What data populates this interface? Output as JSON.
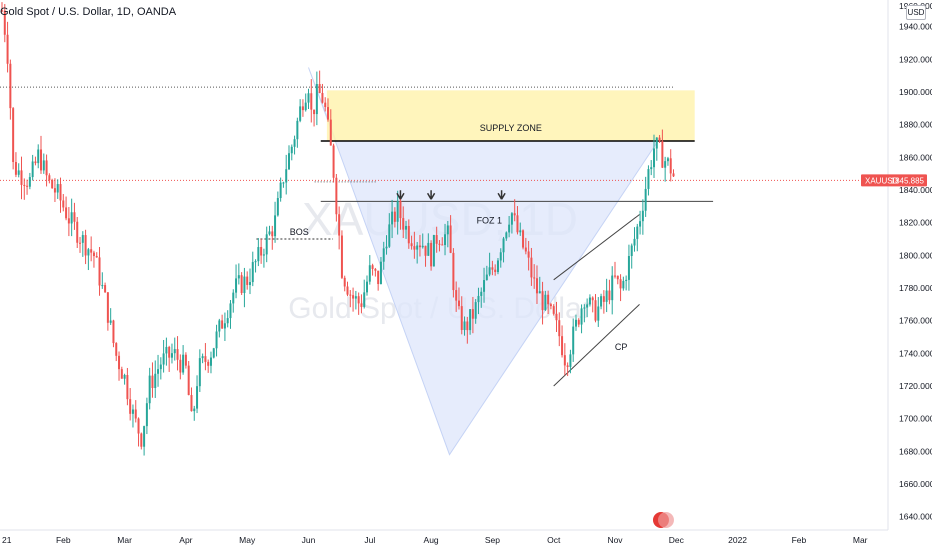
{
  "header": {
    "title": "Gold Spot / U.S. Dollar, 1D, OANDA",
    "currency": "USD",
    "top_price_partial": "1960.000"
  },
  "watermark": {
    "symbol": "XAUUSD, 1D",
    "name": "Gold Spot / U.S. Dollar"
  },
  "annotations": {
    "supply_zone": "SUPPLY ZONE",
    "foz": "FOZ 1",
    "bos": "BOS",
    "cp": "CP"
  },
  "price_tag": {
    "symbol": "XAUUSD",
    "price": "1845.885",
    "value": 1845.885
  },
  "colors": {
    "up": "#26a69a",
    "down": "#ef5350",
    "zone": "#fff3b0",
    "pattern": "#dde6fb",
    "price_line": "#ef5350"
  },
  "chart_data": {
    "type": "candlestick",
    "title": "Gold Spot / U.S. Dollar, 1D, OANDA",
    "ylim": [
      1630,
      1960
    ],
    "y_ticks": [
      1640,
      1660,
      1680,
      1700,
      1720,
      1740,
      1760,
      1780,
      1800,
      1820,
      1840,
      1860,
      1880,
      1900,
      1920,
      1940
    ],
    "y_tick_labels": [
      "1640.000",
      "1660.000",
      "1680.000",
      "1700.000",
      "1720.000",
      "1740.000",
      "1760.000",
      "1780.000",
      "1800.000",
      "1820.000",
      "1840.000",
      "1860.000",
      "1880.000",
      "1900.000",
      "1920.000",
      "1940.000"
    ],
    "x_labels": [
      {
        "label": "21",
        "month": 0
      },
      {
        "label": "Feb",
        "month": 1
      },
      {
        "label": "Mar",
        "month": 2
      },
      {
        "label": "Apr",
        "month": 3
      },
      {
        "label": "May",
        "month": 4
      },
      {
        "label": "Jun",
        "month": 5
      },
      {
        "label": "Jul",
        "month": 6
      },
      {
        "label": "Aug",
        "month": 7
      },
      {
        "label": "Sep",
        "month": 8
      },
      {
        "label": "Oct",
        "month": 9
      },
      {
        "label": "Nov",
        "month": 10
      },
      {
        "label": "Dec",
        "month": 11
      },
      {
        "label": "2022",
        "month": 12
      },
      {
        "label": "Feb",
        "month": 13
      },
      {
        "label": "Mar",
        "month": 14
      }
    ],
    "path": [
      [
        0.0,
        1950
      ],
      [
        0.08,
        1930
      ],
      [
        0.12,
        1905
      ],
      [
        0.18,
        1855
      ],
      [
        0.3,
        1850
      ],
      [
        0.45,
        1845
      ],
      [
        0.6,
        1862
      ],
      [
        0.75,
        1845
      ],
      [
        0.9,
        1838
      ],
      [
        1.1,
        1822
      ],
      [
        1.3,
        1810
      ],
      [
        1.5,
        1800
      ],
      [
        1.7,
        1770
      ],
      [
        1.85,
        1740
      ],
      [
        2.0,
        1725
      ],
      [
        2.15,
        1700
      ],
      [
        2.28,
        1688
      ],
      [
        2.4,
        1720
      ],
      [
        2.6,
        1735
      ],
      [
        2.8,
        1740
      ],
      [
        3.0,
        1730
      ],
      [
        3.1,
        1695
      ],
      [
        3.2,
        1730
      ],
      [
        3.4,
        1740
      ],
      [
        3.6,
        1760
      ],
      [
        3.8,
        1780
      ],
      [
        4.0,
        1785
      ],
      [
        4.2,
        1800
      ],
      [
        4.45,
        1820
      ],
      [
        4.6,
        1850
      ],
      [
        4.75,
        1870
      ],
      [
        4.9,
        1895
      ],
      [
        5.0,
        1905
      ],
      [
        5.05,
        1885
      ],
      [
        5.15,
        1900
      ],
      [
        5.25,
        1895
      ],
      [
        5.4,
        1855
      ],
      [
        5.55,
        1790
      ],
      [
        5.7,
        1775
      ],
      [
        5.85,
        1770
      ],
      [
        6.0,
        1790
      ],
      [
        6.15,
        1785
      ],
      [
        6.25,
        1810
      ],
      [
        6.45,
        1828
      ],
      [
        6.65,
        1812
      ],
      [
        6.85,
        1808
      ],
      [
        7.0,
        1800
      ],
      [
        7.1,
        1812
      ],
      [
        7.28,
        1812
      ],
      [
        7.42,
        1765
      ],
      [
        7.55,
        1755
      ],
      [
        7.7,
        1765
      ],
      [
        7.9,
        1785
      ],
      [
        8.05,
        1795
      ],
      [
        8.2,
        1815
      ],
      [
        8.3,
        1828
      ],
      [
        8.4,
        1815
      ],
      [
        8.55,
        1800
      ],
      [
        8.7,
        1780
      ],
      [
        8.85,
        1770
      ],
      [
        9.0,
        1760
      ],
      [
        9.1,
        1750
      ],
      [
        9.2,
        1735
      ],
      [
        9.35,
        1755
      ],
      [
        9.5,
        1775
      ],
      [
        9.65,
        1765
      ],
      [
        9.8,
        1770
      ],
      [
        10.0,
        1785
      ],
      [
        10.1,
        1778
      ],
      [
        10.25,
        1800
      ],
      [
        10.4,
        1822
      ],
      [
        10.55,
        1852
      ],
      [
        10.65,
        1868
      ],
      [
        10.78,
        1860
      ],
      [
        10.9,
        1854
      ],
      [
        10.98,
        1846
      ]
    ],
    "series": [
      {
        "name": "XAUUSD",
        "last": 1845.885
      }
    ],
    "levels": {
      "top_dotted": 1903,
      "supply_zone": [
        1870,
        1901
      ],
      "supply_zone_month_range": [
        5.3,
        11.3
      ],
      "foz_line": 1833,
      "bos_line": 1810,
      "dotted_mid": 1845
    },
    "pattern_points": [
      [
        5.0,
        1915
      ],
      [
        7.3,
        1678
      ],
      [
        10.7,
        1870
      ],
      [
        5.45,
        1870
      ]
    ],
    "cp_channel": {
      "upper": [
        [
          9.0,
          1785
        ],
        [
          10.4,
          1825
        ]
      ],
      "lower": [
        [
          9.0,
          1720
        ],
        [
          10.4,
          1770
        ]
      ]
    },
    "markers": [
      [
        6.5,
        1838
      ],
      [
        7.0,
        1838
      ],
      [
        8.15,
        1838
      ]
    ]
  }
}
